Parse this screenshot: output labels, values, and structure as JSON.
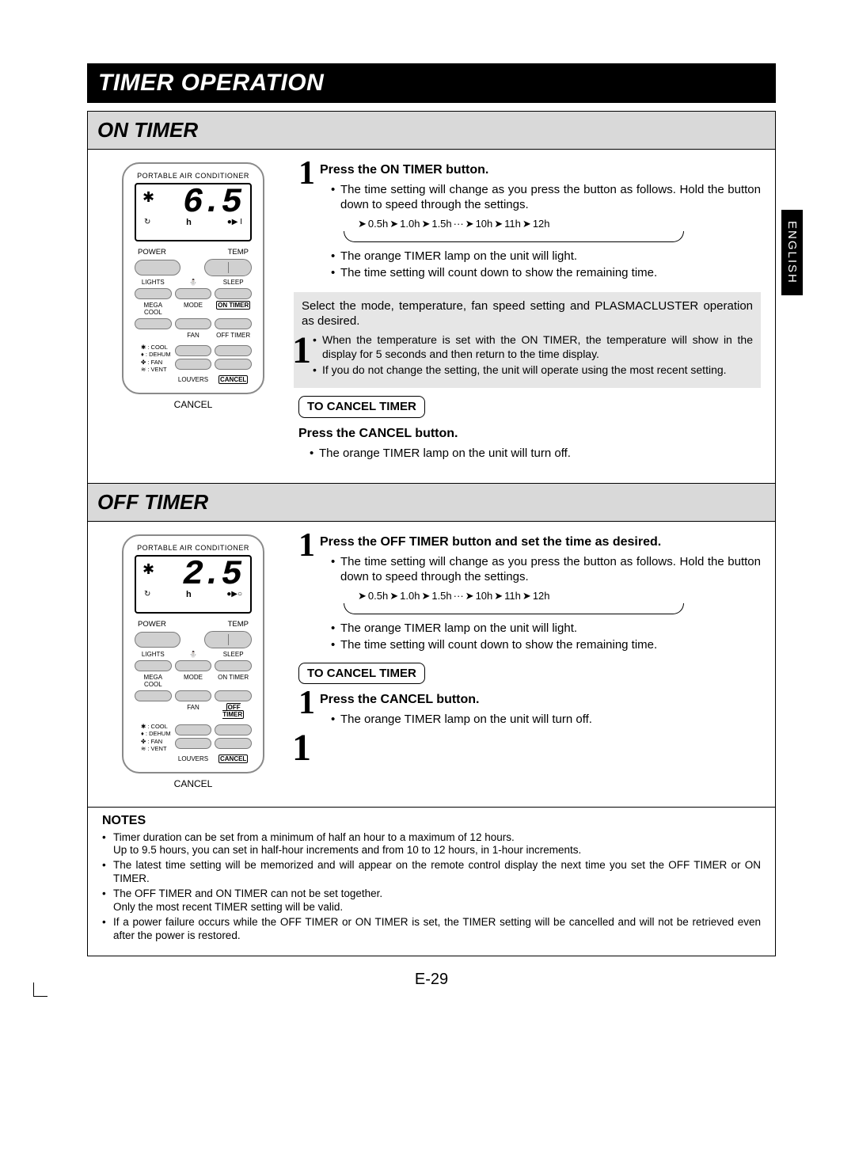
{
  "language_tab": "ENGLISH",
  "page_title": "TIMER OPERATION",
  "page_number": "E-29",
  "time_sequence": [
    "0.5h",
    "1.0h",
    "1.5h",
    "10h",
    "11h",
    "12h"
  ],
  "on_timer": {
    "header": "ON TIMER",
    "remote": {
      "brand": "PORTABLE AIR CONDITIONER",
      "display_value": "6.5",
      "hour_label": "h",
      "left_icon": "↻",
      "right_icon": "●▶ I",
      "labels": {
        "power": "POWER",
        "temp": "TEMP",
        "lights": "LIGHTS",
        "sleep": "SLEEP",
        "megacool": "MEGA COOL",
        "mode": "MODE",
        "ontimer": "ON TIMER",
        "fan": "FAN",
        "offtimer": "OFF TIMER",
        "louvers": "LOUVERS",
        "cancel": "CANCEL"
      },
      "highlighted": [
        "ontimer",
        "cancel"
      ],
      "modes": [
        "✱ : COOL",
        "♦ : DEHUM",
        "✤ : FAN",
        "≋ : VENT"
      ],
      "callout_label": "CANCEL",
      "callout_number": "1"
    },
    "step1_title": "Press the ON TIMER button.",
    "step1_bullets": [
      "The time setting will change as you press the button as follows. Hold the button down to speed through the settings.",
      "The orange TIMER lamp on the unit will light.",
      "The time setting will count down to show the remaining time."
    ],
    "gray_lead": "Select the mode, temperature, fan speed setting and PLASMACLUSTER operation as desired.",
    "gray_bullets": [
      "When the temperature is set with the ON TIMER, the temperature will show in the display for 5 seconds and then return to the time display.",
      "If you do not change the setting, the unit will operate using the most recent setting."
    ],
    "cancel_label": "TO CANCEL TIMER",
    "cancel_title": "Press the CANCEL button.",
    "cancel_bullet": "The orange TIMER lamp on the unit will turn off."
  },
  "off_timer": {
    "header": "OFF TIMER",
    "remote": {
      "brand": "PORTABLE AIR CONDITIONER",
      "display_value": "2.5",
      "hour_label": "h",
      "left_icon": "↻",
      "right_icon": "●▶○",
      "labels": {
        "power": "POWER",
        "temp": "TEMP",
        "lights": "LIGHTS",
        "sleep": "SLEEP",
        "megacool": "MEGA COOL",
        "mode": "MODE",
        "ontimer": "ON TIMER",
        "fan": "FAN",
        "offtimer": "OFF TIMER",
        "louvers": "LOUVERS",
        "cancel": "CANCEL"
      },
      "highlighted": [
        "offtimer",
        "cancel"
      ],
      "modes": [
        "✱ : COOL",
        "♦ : DEHUM",
        "✤ : FAN",
        "≋ : VENT"
      ],
      "callout_label": "CANCEL",
      "callout_number": "1"
    },
    "step1_title": "Press the OFF TIMER button and set the time as desired.",
    "step1_bullets": [
      "The time setting will change as you press the button as follows. Hold the button down to speed through the settings.",
      "The orange TIMER lamp on the unit will light.",
      "The time setting will count down to show the remaining time."
    ],
    "cancel_label": "TO CANCEL TIMER",
    "cancel_title": "Press the CANCEL button.",
    "cancel_bullet": "The orange TIMER lamp on the unit will turn off."
  },
  "notes": {
    "title": "NOTES",
    "items": [
      "Timer duration can be set from a minimum of half an hour to a maximum of 12 hours.\nUp to 9.5 hours, you can set in half-hour increments and from 10 to 12 hours, in 1-hour increments.",
      "The latest time setting will be memorized and will appear on the remote control display the next time you set the OFF TIMER or ON TIMER.",
      "The OFF TIMER and ON TIMER can not be set together.\nOnly the most recent TIMER setting will be valid.",
      "If a power failure occurs while the OFF TIMER or ON TIMER is set, the TIMER setting will be cancelled and will not be retrieved even after the power is restored."
    ]
  }
}
